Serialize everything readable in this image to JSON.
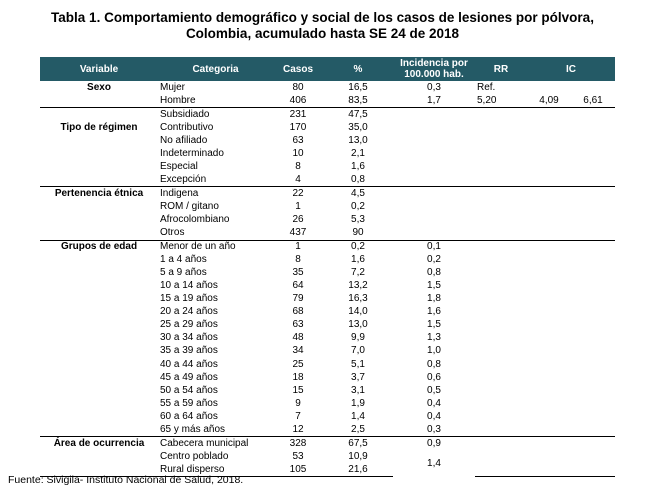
{
  "title": {
    "line1": "Tabla 1. Comportamiento demográfico y social de los casos de lesiones por pólvora,",
    "line2": "Colombia, acumulado hasta SE 24 de 2018"
  },
  "headers": {
    "variable": "Variable",
    "categoria": "Categoria",
    "casos": "Casos",
    "pct": "%",
    "incidencia": "Incidencia por 100.000 hab.",
    "rr": "RR",
    "ic": "IC"
  },
  "groups": [
    {
      "variable": "Sexo",
      "label_row": 0,
      "rows": [
        {
          "cat": "Mujer",
          "casos": "80",
          "pct": "16,5",
          "inc": "0,3",
          "rr": "Ref.",
          "ic_low": "",
          "ic_high": ""
        },
        {
          "cat": "Hombre",
          "casos": "406",
          "pct": "83,5",
          "inc": "1,7",
          "rr": "5,20",
          "ic_low": "4,09",
          "ic_high": "6,61"
        }
      ]
    },
    {
      "variable": "Tipo de régimen",
      "label_row": 1,
      "rows": [
        {
          "cat": "Subsidiado",
          "casos": "231",
          "pct": "47,5"
        },
        {
          "cat": "Contributivo",
          "casos": "170",
          "pct": "35,0"
        },
        {
          "cat": "No afiliado",
          "casos": "63",
          "pct": "13,0"
        },
        {
          "cat": "Indeterminado",
          "casos": "10",
          "pct": "2,1"
        },
        {
          "cat": "Especial",
          "casos": "8",
          "pct": "1,6"
        },
        {
          "cat": "Excepción",
          "casos": "4",
          "pct": "0,8"
        }
      ]
    },
    {
      "variable": "Pertenencia étnica",
      "label_row": 0,
      "rows": [
        {
          "cat": "Indigena",
          "casos": "22",
          "pct": "4,5"
        },
        {
          "cat": "ROM / gitano",
          "casos": "1",
          "pct": "0,2"
        },
        {
          "cat": "Afrocolombiano",
          "casos": "26",
          "pct": "5,3"
        },
        {
          "cat": "Otros",
          "casos": "437",
          "pct": "90"
        }
      ]
    },
    {
      "variable": "Grupos de edad",
      "label_row": 0,
      "rows": [
        {
          "cat": "Menor de un año",
          "casos": "1",
          "pct": "0,2",
          "inc": "0,1"
        },
        {
          "cat": "1 a 4 años",
          "casos": "8",
          "pct": "1,6",
          "inc": "0,2"
        },
        {
          "cat": "5 a 9 años",
          "casos": "35",
          "pct": "7,2",
          "inc": "0,8"
        },
        {
          "cat": "10 a 14 años",
          "casos": "64",
          "pct": "13,2",
          "inc": "1,5"
        },
        {
          "cat": "15 a 19 años",
          "casos": "79",
          "pct": "16,3",
          "inc": "1,8"
        },
        {
          "cat": "20 a 24 años",
          "casos": "68",
          "pct": "14,0",
          "inc": "1,6"
        },
        {
          "cat": "25 a 29 años",
          "casos": "63",
          "pct": "13,0",
          "inc": "1,5"
        },
        {
          "cat": "30 a 34 años",
          "casos": "48",
          "pct": "9,9",
          "inc": "1,3"
        },
        {
          "cat": "35 a 39 años",
          "casos": "34",
          "pct": "7,0",
          "inc": "1,0"
        },
        {
          "cat": "40 a 44 años",
          "casos": "25",
          "pct": "5,1",
          "inc": "0,8"
        },
        {
          "cat": "45 a 49 años",
          "casos": "18",
          "pct": "3,7",
          "inc": "0,6"
        },
        {
          "cat": "50 a 54 años",
          "casos": "15",
          "pct": "3,1",
          "inc": "0,5"
        },
        {
          "cat": "55 a 59 años",
          "casos": "9",
          "pct": "1,9",
          "inc": "0,4"
        },
        {
          "cat": "60 a 64 años",
          "casos": "7",
          "pct": "1,4",
          "inc": "0,4"
        },
        {
          "cat": "65 y más años",
          "casos": "12",
          "pct": "2,5",
          "inc": "0,3"
        }
      ]
    },
    {
      "variable": "Área de ocurrencia",
      "label_row": 0,
      "rows": [
        {
          "cat": "Cabecera municipal",
          "casos": "328",
          "pct": "67,5",
          "inc": "0,9"
        },
        {
          "cat": "Centro poblado",
          "casos": "53",
          "pct": "10,9",
          "inc": "1,4",
          "inc_span": 2
        },
        {
          "cat": "Rural disperso",
          "casos": "105",
          "pct": "21,6",
          "inc_skip": true
        }
      ]
    }
  ],
  "footer": "Fuente: Sivigila- Instituto Nacional de Salud, 2018."
}
